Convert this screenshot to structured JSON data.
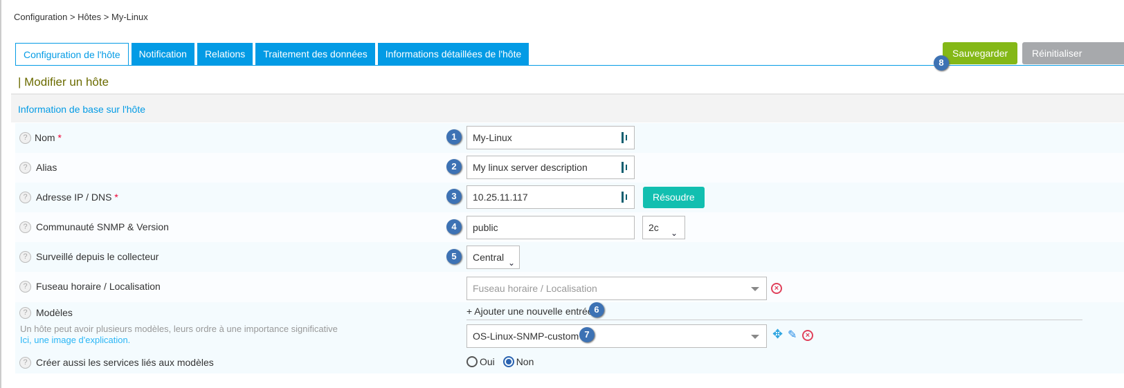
{
  "breadcrumb": [
    "Configuration",
    "Hôtes",
    "My-Linux"
  ],
  "breadcrumb_sep": ">",
  "tabs": [
    {
      "label": "Configuration de l'hôte",
      "active": true
    },
    {
      "label": "Notification"
    },
    {
      "label": "Relations"
    },
    {
      "label": "Traitement des données"
    },
    {
      "label": "Informations détaillées de l'hôte"
    }
  ],
  "toolbar": {
    "save_label": "Sauvegarder",
    "reset_label": "Réinitialiser",
    "save_badge": "8"
  },
  "page_title": "| Modifier un hôte",
  "section_title": "Information de base sur l'hôte",
  "fields": {
    "name": {
      "label": "Nom",
      "required": "*",
      "value": "My-Linux",
      "badge": "1"
    },
    "alias": {
      "label": "Alias",
      "value": "My linux server description",
      "badge": "2"
    },
    "address": {
      "label": "Adresse IP / DNS",
      "required": "*",
      "value": "10.25.11.117",
      "badge": "3",
      "resolve_label": "Résoudre"
    },
    "snmp": {
      "label": "Communauté SNMP & Version",
      "value": "public",
      "version": "2c",
      "badge": "4"
    },
    "poller": {
      "label": "Surveillé depuis le collecteur",
      "value": "Central",
      "badge": "5"
    },
    "timezone": {
      "label": "Fuseau horaire / Localisation",
      "placeholder": "Fuseau horaire / Localisation"
    },
    "templates": {
      "label": "Modèles",
      "help_text": "Un hôte peut avoir plusieurs modèles, leurs ordre à une importance significative",
      "help_link": "Ici, une image d'explication.",
      "add_label": "+ Ajouter une nouvelle entrée",
      "add_badge": "6",
      "value": "OS-Linux-SNMP-custom",
      "value_badge": "7"
    },
    "create_services": {
      "label": "Créer aussi les services liés aux modèles",
      "options": [
        "Oui",
        "Non"
      ],
      "selected": "Non"
    }
  },
  "colors": {
    "tab": "#039be5",
    "save": "#84b817",
    "reset": "#a7a9ac",
    "resolve": "#12bfb0",
    "badge": "#3d72b4"
  }
}
